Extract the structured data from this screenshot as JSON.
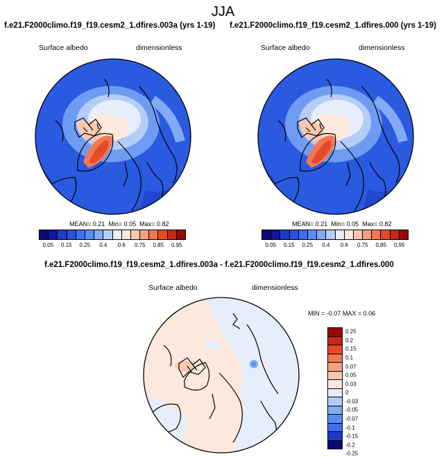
{
  "main_title": "JJA",
  "panel_left": {
    "title": "f.e21.F2000climo.f19_f19.cesm2_1.dfires.003a (yrs 1-19)",
    "variable": "Surface albedo",
    "units": "dimensionless",
    "mean_label": "MEAN=",
    "mean": "0.21",
    "min_label": "Min=",
    "min": "0.05",
    "max_label": "Max=",
    "max": "0.82"
  },
  "panel_right": {
    "title": "f.e21.F2000climo.f19_f19.cesm2_1.dfires.000 (yrs 1-19)",
    "variable": "Surface albedo",
    "units": "dimensionless",
    "mean_label": "MEAN=",
    "mean": "0.21",
    "min_label": "Min=",
    "min": "0.05",
    "max_label": "Max=",
    "max": "0.82"
  },
  "panel_diff": {
    "title": "f.e21.F2000climo.f19_f19.cesm2_1.dfires.003a - f.e21.F2000climo.f19_f19.cesm2_1.dfires.000",
    "variable": "Surface albedo",
    "units": "dimensionless",
    "min_label": "MIN =",
    "min": "-0.07",
    "max_label": "MAX =",
    "max": "0.06"
  },
  "colorbar_abs": {
    "colors": [
      "#0a0a78",
      "#1414a0",
      "#1e3cc8",
      "#2850dc",
      "#3c6ef0",
      "#5a8cf5",
      "#82aaf5",
      "#b4cdf8",
      "#e6eefc",
      "#fce8dc",
      "#fac8b0",
      "#f6a082",
      "#f07852",
      "#e64a28",
      "#c82814",
      "#960a0a"
    ],
    "labels": [
      "0.05",
      "0.15",
      "0.25",
      "0.4",
      "0.6",
      "0.75",
      "0.85",
      "0.95"
    ]
  },
  "colorbar_diff": {
    "colors": [
      "#960a0a",
      "#c82814",
      "#e64a28",
      "#f07852",
      "#f6a082",
      "#fac8b0",
      "#fce8dc",
      "#e6eefc",
      "#b4cdf8",
      "#82aaf5",
      "#5a8cf5",
      "#3c6ef0",
      "#1e3cc8",
      "#0a0a78"
    ],
    "labels": [
      "0.25",
      "0.2",
      "0.15",
      "0.1",
      "0.07",
      "0.05",
      "0.03",
      "0",
      "-0.03",
      "-0.05",
      "-0.07",
      "-0.1",
      "-0.15",
      "-0.2",
      "-0.25"
    ]
  }
}
